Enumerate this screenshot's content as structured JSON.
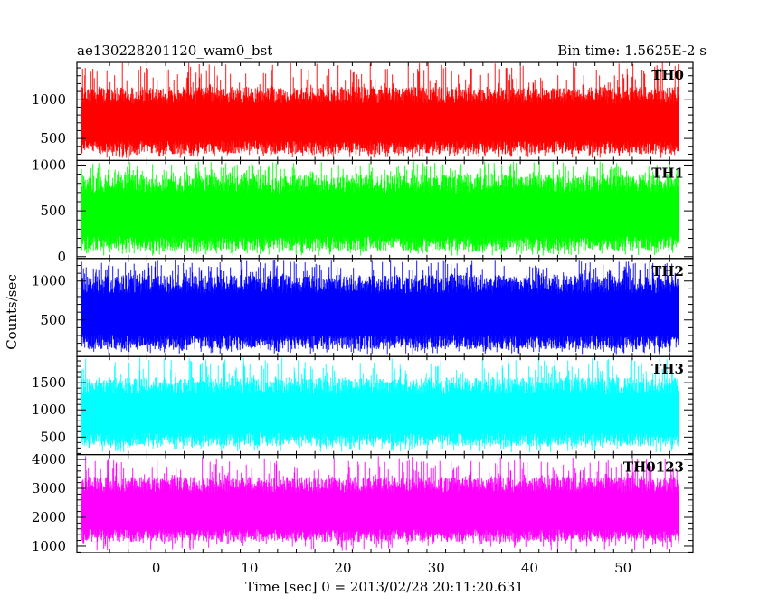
{
  "header": {
    "left_title": "ae130228201120_wam0_bst",
    "right_title": "Bin time: 1.5625E-2 s"
  },
  "chart_data": {
    "type": "line",
    "xlabel": "Time [sec] 0 = 2013/02/28 20:11:20.631",
    "ylabel": "Counts/sec",
    "xlim": [
      -8.5,
      57.5
    ],
    "x_ticks": [
      0,
      10,
      20,
      30,
      40,
      50
    ],
    "x_start": -8.0,
    "x_end": 56.0,
    "grid": false,
    "panels": [
      {
        "name": "TH0",
        "color": "#ff0000",
        "ylim": [
          220,
          1470
        ],
        "y_ticks": [
          500,
          1000
        ],
        "typical_low": 300,
        "typical_high": 1160,
        "max": 1470,
        "min": 250
      },
      {
        "name": "TH1",
        "color": "#00ff00",
        "ylim": [
          -20,
          1050
        ],
        "y_ticks": [
          0,
          500,
          1000
        ],
        "typical_low": 60,
        "typical_high": 900,
        "max": 1040,
        "min": 10
      },
      {
        "name": "TH2",
        "color": "#0000ff",
        "ylim": [
          30,
          1290
        ],
        "y_ticks": [
          500,
          1000
        ],
        "typical_low": 120,
        "typical_high": 1080,
        "max": 1270,
        "min": 60
      },
      {
        "name": "TH3",
        "color": "#00ffff",
        "ylim": [
          180,
          1980
        ],
        "y_ticks": [
          500,
          1000,
          1500
        ],
        "typical_low": 330,
        "typical_high": 1600,
        "max": 1960,
        "min": 220
      },
      {
        "name": "TH0123",
        "color": "#ff00ff",
        "ylim": [
          780,
          4170
        ],
        "y_ticks": [
          1000,
          2000,
          3000,
          4000
        ],
        "typical_low": 1150,
        "typical_high": 3400,
        "max": 4120,
        "min": 850
      }
    ]
  }
}
